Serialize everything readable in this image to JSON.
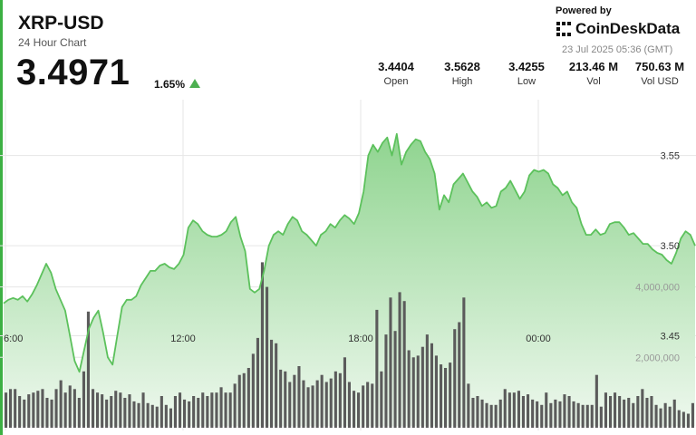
{
  "header": {
    "symbol": "XRP-USD",
    "subtitle": "24 Hour Chart",
    "price": "3.4971",
    "change": "1.65%",
    "powered_by": "Powered by",
    "brand": "CoinDeskData",
    "timestamp": "23 Jul 2025 05:36 (GMT)"
  },
  "stats": [
    {
      "value": "3.4404",
      "label": "Open"
    },
    {
      "value": "3.5628",
      "label": "High"
    },
    {
      "value": "3.4255",
      "label": "Low"
    },
    {
      "value": "213.46 M",
      "label": "Vol"
    },
    {
      "value": "750.63 M",
      "label": "Vol USD"
    }
  ],
  "colors": {
    "line": "#5cc15c",
    "area_top": "#8fd48f",
    "area_bottom": "#eef8ee",
    "volume_bar": "#5b5b5b",
    "up_arrow": "#4caf50"
  },
  "chart_data": {
    "type": "area",
    "x_tick_labels": [
      "6:00",
      "12:00",
      "18:00",
      "00:00"
    ],
    "price_axis": {
      "ticks": [
        3.45,
        3.5,
        3.55
      ],
      "tick_labels": [
        "3.45",
        "3.50",
        "3.55"
      ],
      "range": [
        3.4,
        3.585
      ]
    },
    "volume_axis": {
      "ticks": [
        2000000,
        4000000
      ],
      "tick_labels": [
        "2,000,000",
        "4,000,000"
      ],
      "range": [
        0,
        5200000
      ]
    },
    "series": [
      {
        "values": [
          3.468,
          3.47,
          3.471,
          3.47,
          3.472,
          3.469,
          3.473,
          3.478,
          3.484,
          3.49,
          3.485,
          3.476,
          3.47,
          3.464,
          3.45,
          3.436,
          3.43,
          3.442,
          3.454,
          3.46,
          3.464,
          3.452,
          3.438,
          3.434,
          3.45,
          3.466,
          3.47,
          3.47,
          3.472,
          3.478,
          3.482,
          3.486,
          3.486,
          3.489,
          3.49,
          3.488,
          3.487,
          3.49,
          3.495,
          3.51,
          3.514,
          3.512,
          3.508,
          3.506,
          3.505,
          3.505,
          3.506,
          3.508,
          3.513,
          3.516,
          3.505,
          3.497,
          3.476,
          3.474,
          3.476,
          3.486,
          3.5,
          3.506,
          3.508,
          3.506,
          3.512,
          3.516,
          3.514,
          3.508,
          3.506,
          3.503,
          3.5,
          3.506,
          3.508,
          3.512,
          3.51,
          3.514,
          3.517,
          3.515,
          3.512,
          3.518,
          3.53,
          3.55,
          3.556,
          3.552,
          3.557,
          3.56,
          3.55,
          3.562,
          3.545,
          3.552,
          3.556,
          3.559,
          3.558,
          3.552,
          3.548,
          3.54,
          3.52,
          3.528,
          3.524,
          3.534,
          3.537,
          3.54,
          3.535,
          3.53,
          3.527,
          3.522,
          3.524,
          3.521,
          3.522,
          3.53,
          3.532,
          3.536,
          3.531,
          3.526,
          3.53,
          3.539,
          3.542,
          3.541,
          3.542,
          3.54,
          3.534,
          3.532,
          3.528,
          3.53,
          3.524,
          3.521,
          3.512,
          3.506,
          3.506,
          3.509,
          3.506,
          3.507,
          3.512,
          3.513,
          3.513,
          3.51,
          3.506,
          3.507,
          3.504,
          3.501,
          3.501,
          3.498,
          3.496,
          3.495,
          3.492,
          3.49,
          3.496,
          3.504,
          3.508,
          3.506,
          3.5
        ]
      },
      {
        "name": "Volume",
        "values": [
          1000000,
          1100000,
          1100000,
          900000,
          800000,
          950000,
          1000000,
          1050000,
          1100000,
          850000,
          800000,
          1100000,
          1350000,
          1000000,
          1200000,
          1100000,
          850000,
          1600000,
          3300000,
          1100000,
          1000000,
          950000,
          800000,
          900000,
          1050000,
          1000000,
          850000,
          950000,
          750000,
          700000,
          1000000,
          700000,
          650000,
          600000,
          900000,
          650000,
          550000,
          900000,
          1000000,
          800000,
          750000,
          900000,
          850000,
          1000000,
          900000,
          1000000,
          1000000,
          1150000,
          1000000,
          1000000,
          1250000,
          1500000,
          1550000,
          1700000,
          2100000,
          2550000,
          4700000,
          4000000,
          2500000,
          2400000,
          1650000,
          1600000,
          1300000,
          1500000,
          1750000,
          1350000,
          1150000,
          1200000,
          1350000,
          1500000,
          1300000,
          1400000,
          1600000,
          1550000,
          2000000,
          1300000,
          1050000,
          1000000,
          1200000,
          1300000,
          1250000,
          3350000,
          1600000,
          2650000,
          3700000,
          2750000,
          3850000,
          3600000,
          2200000,
          2000000,
          2050000,
          2300000,
          2650000,
          2400000,
          2050000,
          1800000,
          1700000,
          1850000,
          2800000,
          3000000,
          3700000,
          1250000,
          850000,
          900000,
          800000,
          700000,
          650000,
          650000,
          800000,
          1100000,
          1000000,
          1000000,
          1050000,
          900000,
          950000,
          800000,
          750000,
          650000,
          1000000,
          700000,
          800000,
          750000,
          950000,
          900000,
          750000,
          700000,
          650000,
          650000,
          650000,
          1500000,
          600000,
          1000000,
          900000,
          1000000,
          900000,
          800000,
          850000,
          700000,
          900000,
          1100000,
          850000,
          900000,
          650000,
          550000,
          700000,
          600000,
          800000,
          500000,
          450000,
          400000,
          700000
        ]
      }
    ]
  }
}
